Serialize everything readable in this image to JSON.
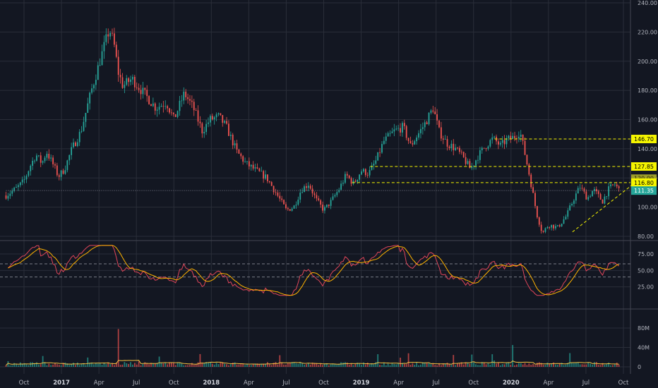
{
  "colors": {
    "background": "#131722",
    "grid": "#2a2e39",
    "axis_text": "#b2b5be",
    "up": "#26a69a",
    "down": "#ef5350",
    "level_line": "#f5f500",
    "rsi_line": "#e040fb",
    "rsi_ma": "#ffb300",
    "volume_ma": "#f5c242"
  },
  "chart_data": [
    {
      "type": "line",
      "panel": "price",
      "ylim": [
        75,
        240
      ],
      "y_ticks": [
        "240.00",
        "220.00",
        "200.00",
        "180.00",
        "160.00",
        "140.00",
        "120.00",
        "100.00",
        "80.00"
      ],
      "x_ticks": [
        {
          "label": "Oct",
          "year": false,
          "pos": 0.0
        },
        {
          "label": "2017",
          "year": true,
          "pos": 0.25
        },
        {
          "label": "Apr",
          "year": false,
          "pos": 0.5
        },
        {
          "label": "Jul",
          "year": false,
          "pos": 0.75
        },
        {
          "label": "Oct",
          "year": false,
          "pos": 1.0
        },
        {
          "label": "2018",
          "year": true,
          "pos": 1.25
        },
        {
          "label": "Apr",
          "year": false,
          "pos": 1.5
        },
        {
          "label": "Jul",
          "year": false,
          "pos": 1.75
        },
        {
          "label": "Oct",
          "year": false,
          "pos": 2.0
        },
        {
          "label": "2019",
          "year": true,
          "pos": 2.25
        },
        {
          "label": "Apr",
          "year": false,
          "pos": 2.5
        },
        {
          "label": "Jul",
          "year": false,
          "pos": 2.75
        },
        {
          "label": "Oct",
          "year": false,
          "pos": 3.0
        },
        {
          "label": "2020",
          "year": true,
          "pos": 3.25
        },
        {
          "label": "Apr",
          "year": false,
          "pos": 3.5
        },
        {
          "label": "Jul",
          "year": false,
          "pos": 3.75
        },
        {
          "label": "Oct",
          "year": false,
          "pos": 4.0
        }
      ],
      "x_range": [
        -0.12,
        4.15
      ],
      "close_path": [
        [
          -0.12,
          108
        ],
        [
          -0.05,
          113
        ],
        [
          0.0,
          118
        ],
        [
          0.04,
          128
        ],
        [
          0.08,
          136
        ],
        [
          0.12,
          130
        ],
        [
          0.15,
          138
        ],
        [
          0.2,
          128
        ],
        [
          0.23,
          121
        ],
        [
          0.27,
          126
        ],
        [
          0.32,
          140
        ],
        [
          0.38,
          152
        ],
        [
          0.45,
          180
        ],
        [
          0.52,
          205
        ],
        [
          0.57,
          222
        ],
        [
          0.6,
          212
        ],
        [
          0.63,
          192
        ],
        [
          0.66,
          183
        ],
        [
          0.72,
          188
        ],
        [
          0.8,
          178
        ],
        [
          0.88,
          168
        ],
        [
          0.95,
          172
        ],
        [
          1.0,
          160
        ],
        [
          1.07,
          178
        ],
        [
          1.13,
          168
        ],
        [
          1.19,
          152
        ],
        [
          1.24,
          160
        ],
        [
          1.3,
          162
        ],
        [
          1.35,
          155
        ],
        [
          1.42,
          138
        ],
        [
          1.48,
          130
        ],
        [
          1.55,
          125
        ],
        [
          1.62,
          120
        ],
        [
          1.68,
          110
        ],
        [
          1.75,
          98
        ],
        [
          1.8,
          100
        ],
        [
          1.85,
          112
        ],
        [
          1.9,
          116
        ],
        [
          1.95,
          105
        ],
        [
          2.0,
          98
        ],
        [
          2.05,
          104
        ],
        [
          2.1,
          112
        ],
        [
          2.15,
          122
        ],
        [
          2.2,
          116
        ],
        [
          2.25,
          125
        ],
        [
          2.3,
          123
        ],
        [
          2.35,
          132
        ],
        [
          2.4,
          145
        ],
        [
          2.47,
          152
        ],
        [
          2.53,
          155
        ],
        [
          2.58,
          142
        ],
        [
          2.63,
          150
        ],
        [
          2.68,
          158
        ],
        [
          2.73,
          168
        ],
        [
          2.77,
          152
        ],
        [
          2.82,
          144
        ],
        [
          2.88,
          140
        ],
        [
          2.93,
          134
        ],
        [
          2.98,
          126
        ],
        [
          3.03,
          135
        ],
        [
          3.08,
          142
        ],
        [
          3.13,
          147
        ],
        [
          3.18,
          142
        ],
        [
          3.22,
          146
        ],
        [
          3.27,
          148
        ],
        [
          3.31,
          152
        ],
        [
          3.34,
          138
        ],
        [
          3.38,
          118
        ],
        [
          3.42,
          96
        ],
        [
          3.46,
          82
        ],
        [
          3.5,
          88
        ],
        [
          3.56,
          86
        ],
        [
          3.62,
          94
        ],
        [
          3.67,
          106
        ],
        [
          3.71,
          114
        ],
        [
          3.76,
          106
        ],
        [
          3.8,
          112
        ],
        [
          3.86,
          104
        ],
        [
          3.9,
          112
        ],
        [
          3.94,
          116
        ],
        [
          3.97,
          112
        ]
      ],
      "levels": [
        {
          "value": 146.7,
          "label": "146.70",
          "x_start": 3.14,
          "x_end": 4.05,
          "tag_bg": "#f5f500",
          "tag_fg": "#000000"
        },
        {
          "value": 127.85,
          "label": "127.85",
          "x_start": 2.31,
          "x_end": 4.05,
          "tag_bg": "#f5f500",
          "tag_fg": "#000000"
        },
        {
          "value": 116.8,
          "label": "116.80",
          "x_start": 2.19,
          "x_end": 4.05,
          "tag_bg": "#f5f500",
          "tag_fg": "#000000"
        },
        {
          "value": 111.35,
          "label": "111.35",
          "x_start": -0.12,
          "x_end": 4.05,
          "tag_bg": "#26a69a",
          "tag_fg": "#ffffff",
          "style": "dotted"
        }
      ],
      "trendline": {
        "from": [
          3.66,
          83
        ],
        "to": [
          4.08,
          117
        ]
      },
      "hidden_tag": "120.00"
    },
    {
      "type": "line",
      "panel": "rsi",
      "ylim": [
        0,
        95
      ],
      "y_ticks": [
        "75.00",
        "50.00",
        "25.00"
      ],
      "bands": [
        40,
        60
      ]
    },
    {
      "type": "bar",
      "panel": "volume",
      "ylim": [
        0,
        110
      ],
      "y_ticks": [
        "80M",
        "40M",
        "0"
      ],
      "unit": "M"
    }
  ]
}
